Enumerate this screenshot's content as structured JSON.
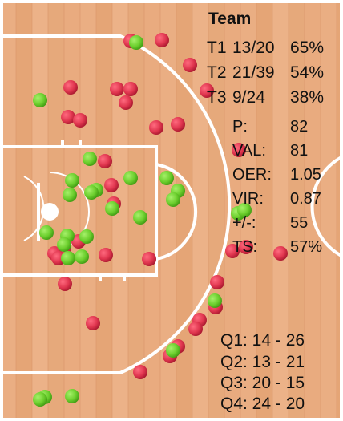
{
  "panel": {
    "title": "Team",
    "shooting": [
      {
        "label": "T1",
        "made": "13/20",
        "pct": "65%"
      },
      {
        "label": "T2",
        "made": "21/39",
        "pct": "54%"
      },
      {
        "label": "T3",
        "made": "9/24",
        "pct": "38%"
      }
    ],
    "advanced": [
      {
        "label": "P:",
        "value": "82"
      },
      {
        "label": "VAL:",
        "value": "81"
      },
      {
        "label": "OER:",
        "value": "1.05"
      },
      {
        "label": "VIR:",
        "value": "0.87"
      },
      {
        "label": "+/-:",
        "value": "55"
      },
      {
        "label": "TS:",
        "value": "57%"
      }
    ],
    "quarters": [
      {
        "text": "Q1: 14 - 26"
      },
      {
        "text": "Q2: 13 - 21"
      },
      {
        "text": "Q3: 20 - 15"
      },
      {
        "text": "Q4: 24 - 20"
      }
    ]
  },
  "colors": {
    "court": "#e8a87c",
    "lines": "#ffffff",
    "made": "#6ccf2e",
    "missed": "#e0364f"
  }
}
